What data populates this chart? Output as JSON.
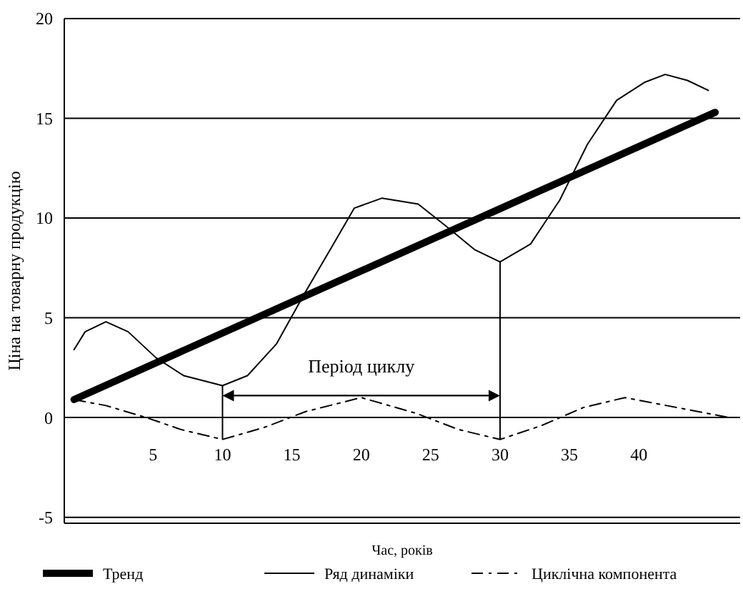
{
  "chart_data": {
    "type": "line",
    "xlabel": "Час, років",
    "ylabel": "Ціна на товарну продукцію",
    "xlim": [
      -1.4,
      47.3
    ],
    "ylim": [
      -5.3,
      20
    ],
    "xticks": [
      5,
      10,
      15,
      20,
      25,
      30,
      35,
      40
    ],
    "yticks": [
      -5,
      0,
      5,
      10,
      15,
      20
    ],
    "grid": "y",
    "legend": "bottom",
    "annotations": [
      "Період циклу"
    ],
    "series": [
      {
        "name": "Тренд",
        "color": "#000000",
        "line_style": "solid",
        "x": [
          -0.7,
          45.5
        ],
        "values": [
          0.9,
          15.3
        ]
      },
      {
        "name": "Ряд динаміки",
        "color": "#000000",
        "line_style": "solid",
        "x": [
          -0.7,
          0.1,
          1.6,
          3.2,
          5.2,
          7.2,
          10,
          11.8,
          13.9,
          15.9,
          18,
          19.5,
          21.5,
          24.1,
          26.1,
          28.2,
          30,
          32.2,
          34.3,
          36.3,
          38.4,
          40.4,
          41.9,
          43.5,
          45
        ],
        "values": [
          3.4,
          4.3,
          4.8,
          4.3,
          3.0,
          2.1,
          1.6,
          2.1,
          3.7,
          6.2,
          8.7,
          10.5,
          11,
          10.7,
          9.6,
          8.4,
          7.8,
          8.7,
          10.9,
          13.7,
          15.9,
          16.8,
          17.2,
          16.9,
          16.4
        ]
      },
      {
        "name": "Циклічна компонента",
        "color": "#000000",
        "line_style": "dashed",
        "x": [
          -0.7,
          1.6,
          4.5,
          7,
          10,
          13,
          16,
          20,
          24,
          27,
          30,
          33,
          36,
          39,
          42,
          46.5
        ],
        "values": [
          0.9,
          0.6,
          0,
          -0.6,
          -1.1,
          -0.5,
          0.3,
          1,
          0.2,
          -0.6,
          -1.1,
          -0.4,
          0.5,
          1,
          0.6,
          0
        ]
      }
    ]
  }
}
